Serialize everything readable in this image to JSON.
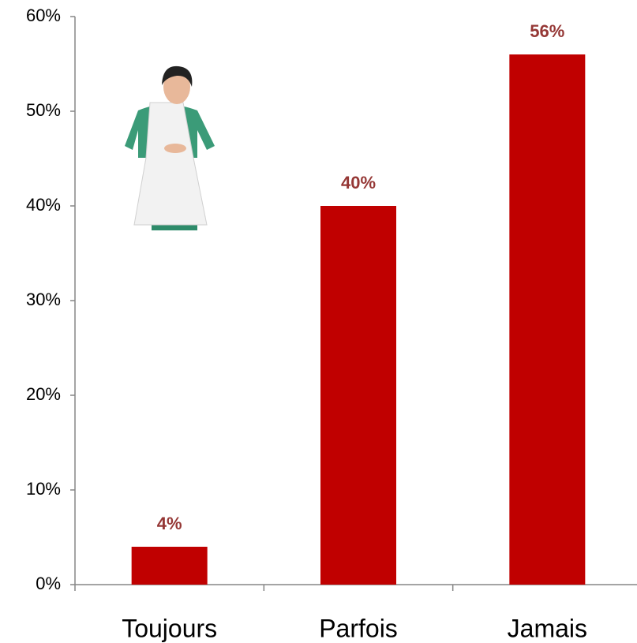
{
  "chart_data": {
    "type": "bar",
    "categories": [
      "Toujours",
      "Parfois",
      "Jamais"
    ],
    "values": [
      4,
      40,
      56
    ],
    "value_labels": [
      "4%",
      "40%",
      "56%"
    ],
    "color": "#c00000",
    "ylim": [
      0,
      60
    ],
    "yticks": [
      {
        "value": 0,
        "label": "0%"
      },
      {
        "value": 10,
        "label": "10%"
      },
      {
        "value": 20,
        "label": "20%"
      },
      {
        "value": 30,
        "label": "30%"
      },
      {
        "value": 40,
        "label": "40%"
      },
      {
        "value": 50,
        "label": "50%"
      },
      {
        "value": 60,
        "label": "60%"
      }
    ],
    "grid": false
  }
}
